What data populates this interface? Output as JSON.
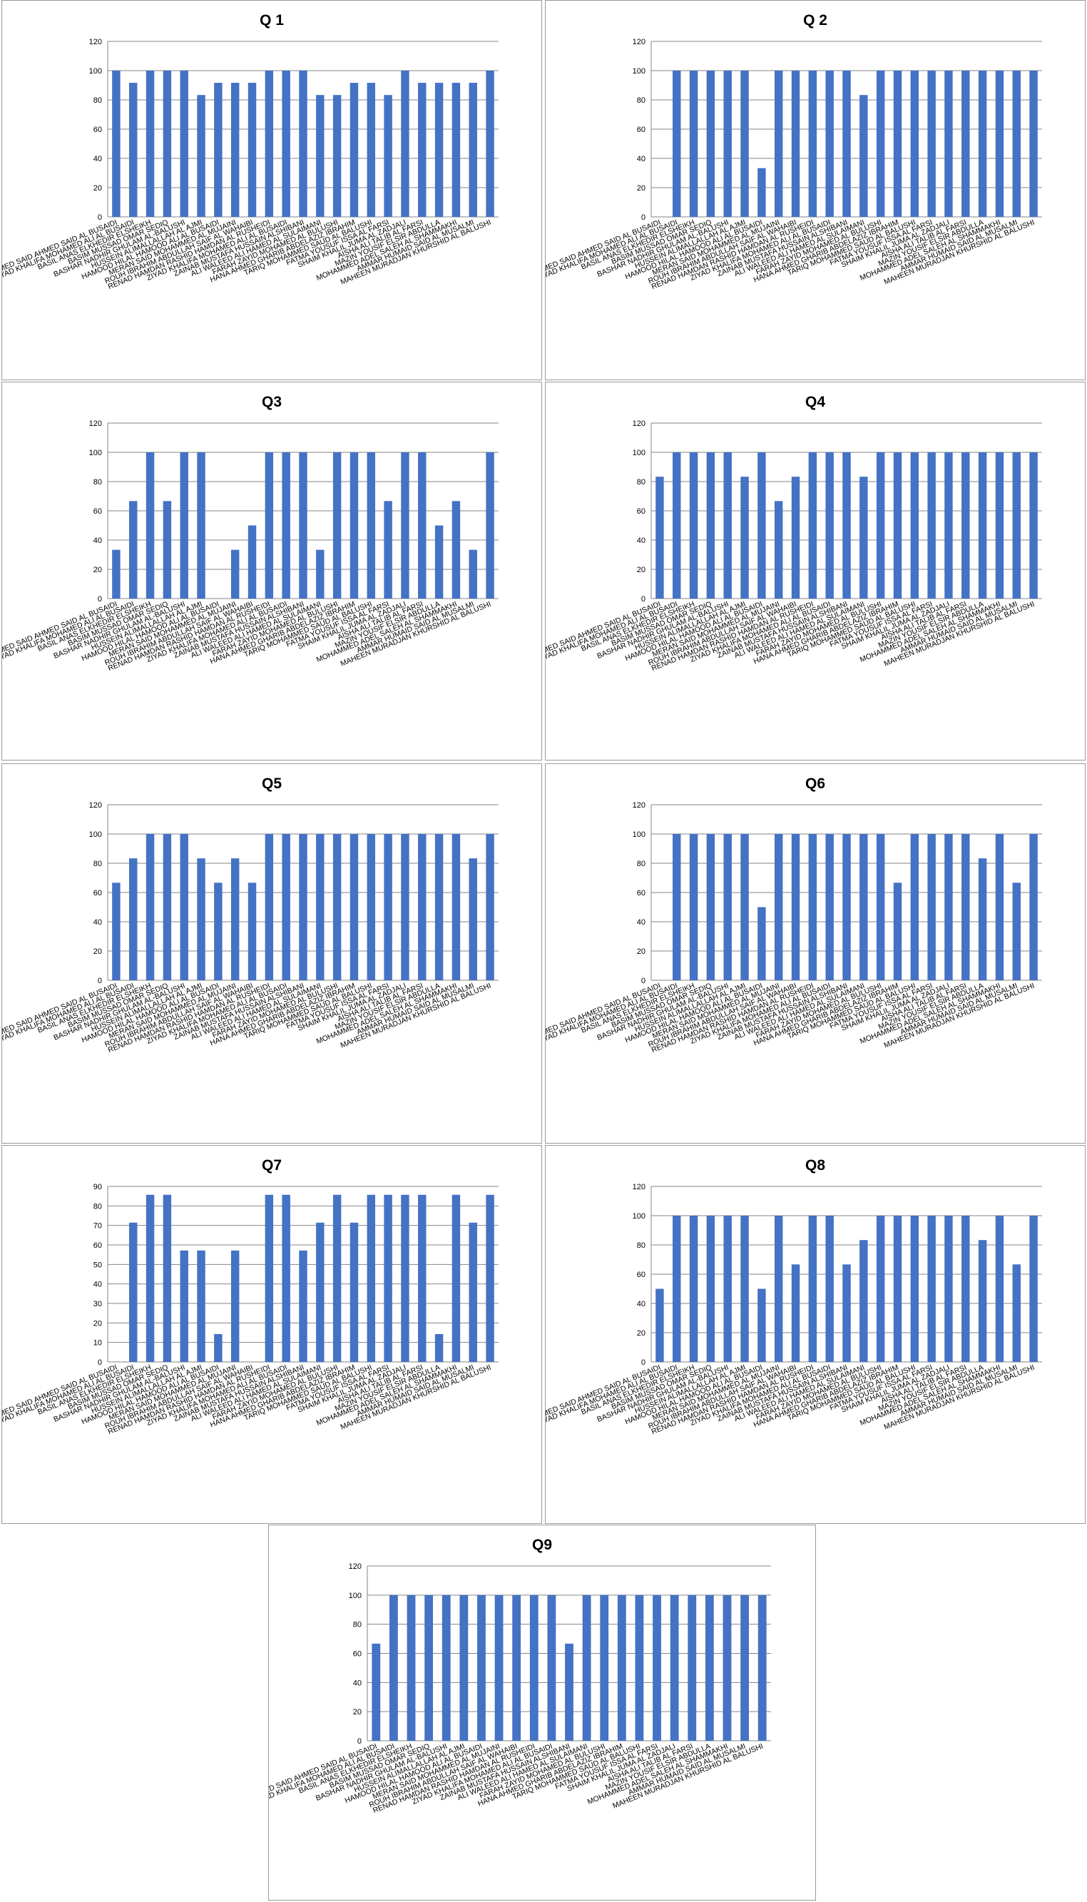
{
  "bar_color": "#4472C4",
  "grid_color": "#868686",
  "chart_data": [
    {
      "type": "bar",
      "title": "Q 1",
      "ylim": [
        0,
        120
      ],
      "yticks": [
        0,
        20,
        40,
        60,
        80,
        100,
        120
      ],
      "grid": true,
      "category_set": "A",
      "values": [
        100,
        91.67,
        100,
        100,
        100,
        83.33,
        91.67,
        91.67,
        91.67,
        100,
        100,
        100,
        83.33,
        83.33,
        91.67,
        91.67,
        83.33,
        100,
        91.67,
        91.67,
        91.67,
        91.67,
        100
      ]
    },
    {
      "type": "bar",
      "title": "Q 2",
      "ylim": [
        0,
        120
      ],
      "yticks": [
        0,
        20,
        40,
        60,
        80,
        100,
        120
      ],
      "grid": true,
      "category_set": "A",
      "values": [
        0,
        100,
        100,
        100,
        100,
        100,
        33.33,
        100,
        100,
        100,
        100,
        100,
        83.33,
        100,
        100,
        100,
        100,
        100,
        100,
        100,
        100,
        100,
        100
      ]
    },
    {
      "type": "bar",
      "title": "Q3",
      "ylim": [
        0,
        120
      ],
      "yticks": [
        0,
        20,
        40,
        60,
        80,
        100,
        120
      ],
      "grid": true,
      "category_set": "A",
      "values": [
        33.33,
        66.67,
        100,
        66.67,
        100,
        100,
        0,
        33.33,
        50,
        100,
        100,
        100,
        33.33,
        100,
        100,
        100,
        66.67,
        100,
        100,
        50,
        66.67,
        33.33,
        100
      ]
    },
    {
      "type": "bar",
      "title": "Q4",
      "ylim": [
        0,
        120
      ],
      "yticks": [
        0,
        20,
        40,
        60,
        80,
        100,
        120
      ],
      "grid": true,
      "category_set": "A",
      "values": [
        83.33,
        100,
        100,
        100,
        100,
        83.33,
        100,
        66.67,
        83.33,
        100,
        100,
        100,
        83.33,
        100,
        100,
        100,
        100,
        100,
        100,
        100,
        100,
        100,
        100
      ]
    },
    {
      "type": "bar",
      "title": "Q5",
      "ylim": [
        0,
        120
      ],
      "yticks": [
        0,
        20,
        40,
        60,
        80,
        100,
        120
      ],
      "grid": true,
      "category_set": "A",
      "values": [
        66.67,
        83.33,
        100,
        100,
        100,
        83.33,
        66.67,
        83.33,
        66.67,
        100,
        100,
        100,
        100,
        100,
        100,
        100,
        100,
        100,
        100,
        100,
        100,
        83.33,
        100
      ]
    },
    {
      "type": "bar",
      "title": "Q6",
      "ylim": [
        0,
        120
      ],
      "yticks": [
        0,
        20,
        40,
        60,
        80,
        100,
        120
      ],
      "grid": true,
      "category_set": "A",
      "values": [
        0,
        100,
        100,
        100,
        100,
        100,
        50,
        100,
        100,
        100,
        100,
        100,
        100,
        100,
        66.67,
        100,
        100,
        100,
        100,
        83.33,
        100,
        66.67,
        100
      ]
    },
    {
      "type": "bar",
      "title": "Q7",
      "ylim": [
        0,
        90
      ],
      "yticks": [
        0,
        10,
        20,
        30,
        40,
        50,
        60,
        70,
        80,
        90
      ],
      "grid": true,
      "category_set": "A",
      "values": [
        0,
        71.43,
        85.71,
        85.71,
        57.14,
        57.14,
        14.29,
        57.14,
        0,
        85.71,
        85.71,
        57.14,
        71.43,
        85.71,
        71.43,
        85.71,
        85.71,
        85.71,
        85.71,
        14.29,
        85.71,
        71.43,
        85.71
      ]
    },
    {
      "type": "bar",
      "title": "Q8",
      "ylim": [
        0,
        120
      ],
      "yticks": [
        0,
        20,
        40,
        60,
        80,
        100,
        120
      ],
      "grid": true,
      "category_set": "A",
      "values": [
        50,
        100,
        100,
        100,
        100,
        100,
        50,
        100,
        66.67,
        100,
        100,
        66.67,
        83.33,
        100,
        100,
        100,
        100,
        100,
        100,
        83.33,
        100,
        66.67,
        100
      ]
    },
    {
      "type": "bar",
      "title": "Q9",
      "ylim": [
        0,
        120
      ],
      "yticks": [
        0,
        20,
        40,
        60,
        80,
        100,
        120
      ],
      "grid": true,
      "category_set": "B",
      "values": [
        66.67,
        100,
        100,
        100,
        100,
        100,
        100,
        100,
        100,
        100,
        100,
        66.67,
        100,
        100,
        100,
        100,
        100,
        100,
        100,
        100,
        100,
        100,
        100
      ]
    }
  ],
  "categories": {
    "A": [
      "AHMED SAID AHMED  SAID AL BUSAIDI",
      "EYAD KHALIFA MOHAMED ALI AL BUSAIDI",
      "BASIL ANAS ELKHEDIR ELSHEIKH",
      "BASIM MUSSAD OMAR SEDIQ",
      "BASHAR NADHIR GHULAM AL-BALUSHI",
      "HUSSEIN ALIMALLALLAH AL AJMI",
      "HAMOOD HILAL HAMOOD ALI AL BUSAIDI",
      "MERAN SAID MOHAMMED  AL MUJAINI",
      "ROUH IBRAHIM ABDULLAH SAIF AL WAHAIBI",
      "RENAD HAMDAN RASHID HAMDAN  AL RUSHEIDI",
      "ZIYAD KHALIFA MOHAMED ALI AL BUSAIDI",
      "ZAINAB MUSTAFA HUSSAIN ALSHIBANI",
      "ALI WALEED ALI HAMED  AL SULAIMANI",
      "FARAH ZAYID MOHAMED AL BULUSHI",
      "HANA AHMED GHARIB ABDELAZIZ IBRAHIM",
      "TARIQ MOHAMMED SAUD AL BALUSHI",
      "FATMA YOUSUF ISSA AL FARSI",
      "SHAIM KHALIL JUMA AL ZADJALI",
      "AISHA ALI TALIB AL FARSI",
      "MAZIN YOUSIF ELSIR ABDULLA",
      "MOHAMMED ADEL SALEH AL SHAMMAKHI",
      "AMMAR HUMAID SAID AL MUSALMI",
      "MAHEEN MURADJAN KHURSHID  AL BALUSHI"
    ],
    "B": [
      "AHMED SAID AHMED  SAID AL BUSAIDI",
      "EYAD KHALIFA MOHAMED ALI AL BUSAIDI",
      "BASIL ANAS ELKHEDIR ELSHEIKH",
      "BASIM MUSSAD OMAR SEDIQ",
      "BASHAR NADHIR GHULAM AL-BALUSHI",
      "HUSSEIN ALIMALLALLAH AL AJMI",
      "HAMOOD HILAL HAMOOD ALI AL BUSAIDI",
      "MERAN SAID MOHAMMED  AL MUJAINI",
      "ROUH IBRAHIM ABDULLAH SAIF AL WAHAIBI",
      "RENAD HAMDAN RASHID HAMDAN  AL RUSHEIDI",
      "ZIYAD KHALIFA MOHAMED ALI AL BUSAIDI",
      "ZAINAB MUSTAFA HUSSAIN ALSHIBANI",
      "ALI WALEED ALI HAMED  AL SULAIMANI",
      "FARAH ZAYID MOHAMED AL BULUSHI",
      "HANA AHMED GHARIB ABDELAZIZ IBRAHIM",
      "TARIQ MOHAMMED SAUD AL BALUSHI",
      "FATMA YOUSUF ISSA AL FARSI",
      "SHAIM KHALIL JUMA AL ZADJALI",
      "AISHA ALI TALIB AL FARSI",
      "MAZIN YOUSIF ELSIR ABDULLA",
      "MOHAMMED ADEL SALEH AL SHAMMAKHI",
      "AMMAR HUMAID SAID AL MUSALMI",
      "MAHEEN MURADJAN KHURSHID  AL BALUSHI"
    ]
  }
}
